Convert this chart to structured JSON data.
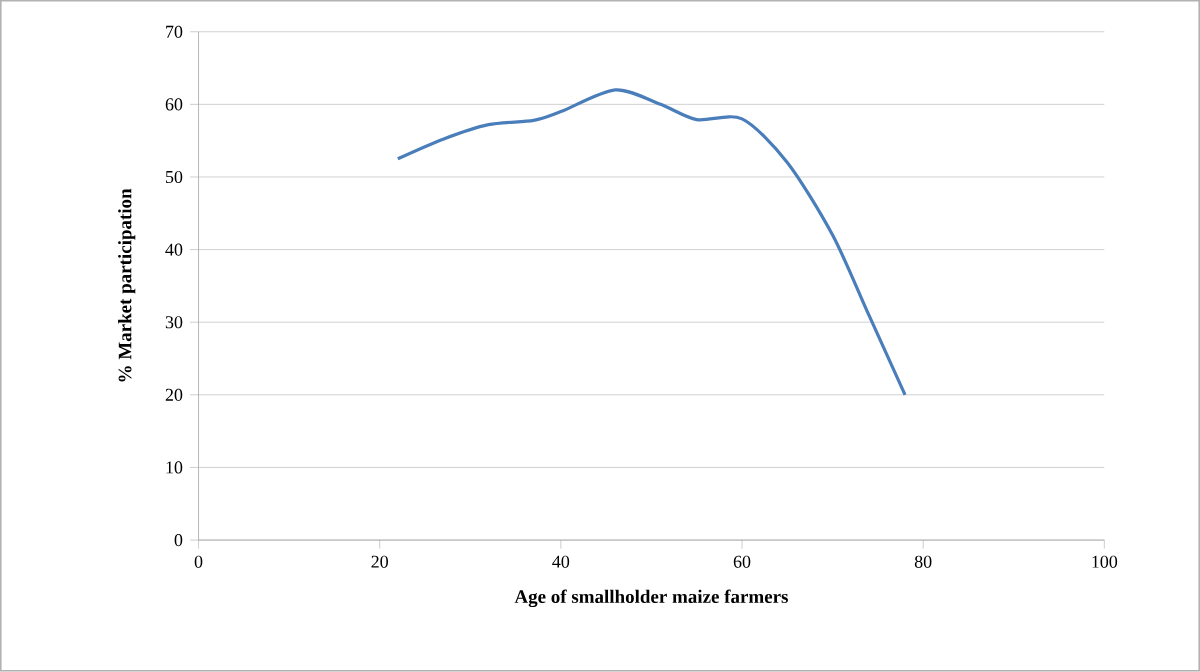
{
  "chart_data": {
    "type": "line",
    "xlabel": "Age of smallholder maize farmers",
    "ylabel": "% Market participation",
    "x": [
      22,
      27,
      32,
      37,
      40,
      46,
      51,
      55,
      60,
      65,
      70,
      74,
      78
    ],
    "series": [
      {
        "color": "#4a7ebb",
        "values": [
          52.5,
          55.2,
          57.2,
          57.8,
          59,
          62,
          60,
          57.9,
          58,
          52,
          42,
          31,
          20
        ]
      }
    ],
    "xlim": [
      0,
      100
    ],
    "xticks": [
      0,
      20,
      40,
      60,
      80,
      100
    ],
    "ylim": [
      0,
      70
    ],
    "yticks": [
      0,
      10,
      20,
      30,
      40,
      50,
      60,
      70
    ],
    "grid": "y",
    "marker": "none",
    "line_style": "solid"
  }
}
